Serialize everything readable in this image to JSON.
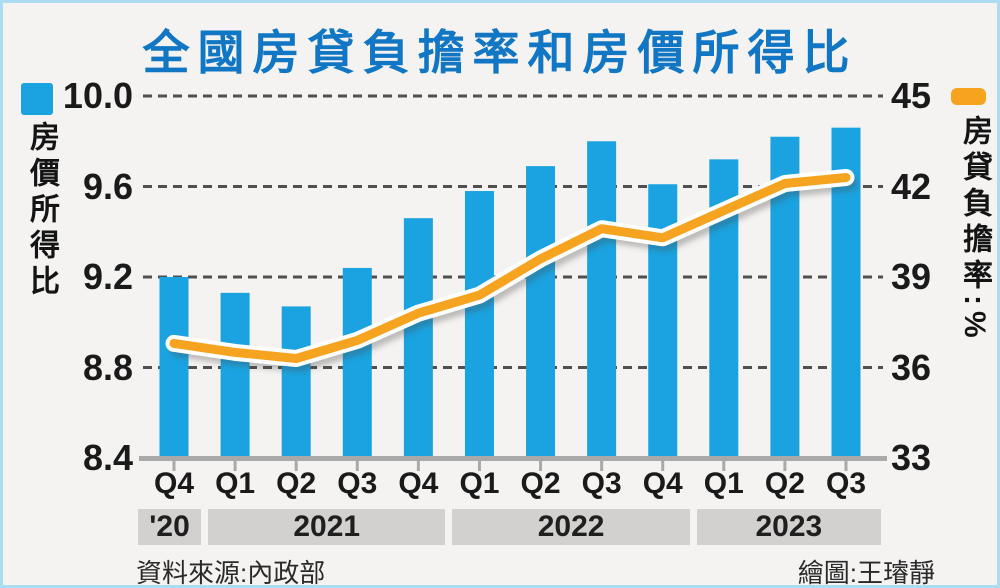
{
  "title": "全國房貸負擔率和房價所得比",
  "footer": {
    "source": "資料來源:內政部",
    "credit": "繪圖:王璿靜"
  },
  "colors": {
    "bar": "#1aa3e0",
    "line": "#f6a31f",
    "line_casing": "#ffffff",
    "title": "#1176c4",
    "grid": "#4f4f4f",
    "axis": "#a9a9a9",
    "year_band_bg": "#d2d1cf",
    "text": "#1a1a1a",
    "frame_border": "#abdcf2",
    "background": "#f4f3f1"
  },
  "chart_data": {
    "type": "bar+line",
    "title": "全國房貸負擔率和房價所得比",
    "grid": "dashed-horizontal",
    "legend_position": "top-corners",
    "categories": [
      "Q4",
      "Q1",
      "Q2",
      "Q3",
      "Q4",
      "Q1",
      "Q2",
      "Q3",
      "Q4",
      "Q1",
      "Q2",
      "Q3"
    ],
    "year_bands": [
      {
        "label": "'20",
        "span": 1
      },
      {
        "label": "2021",
        "span": 4
      },
      {
        "label": "2022",
        "span": 4
      },
      {
        "label": "2023",
        "span": 3
      }
    ],
    "left_axis": {
      "label": "房價所得比",
      "ticks": [
        "10.0",
        "9.6",
        "9.2",
        "8.8",
        "8.4"
      ],
      "min": 8.4,
      "max": 10.0
    },
    "right_axis": {
      "label": "房貸負擔率:%",
      "ticks": [
        "45",
        "42",
        "39",
        "36",
        "33"
      ],
      "min": 33,
      "max": 45
    },
    "series": [
      {
        "name": "房價所得比",
        "type": "bar",
        "axis": "left",
        "color": "#1aa3e0",
        "values": [
          9.2,
          9.13,
          9.07,
          9.24,
          9.46,
          9.58,
          9.69,
          9.8,
          9.61,
          9.72,
          9.82,
          9.86
        ]
      },
      {
        "name": "房貸負擔率",
        "type": "line",
        "axis": "right",
        "color": "#f6a31f",
        "values": [
          36.8,
          36.5,
          36.3,
          36.9,
          37.8,
          38.4,
          39.6,
          40.6,
          40.3,
          41.2,
          42.1,
          42.3
        ]
      }
    ]
  }
}
